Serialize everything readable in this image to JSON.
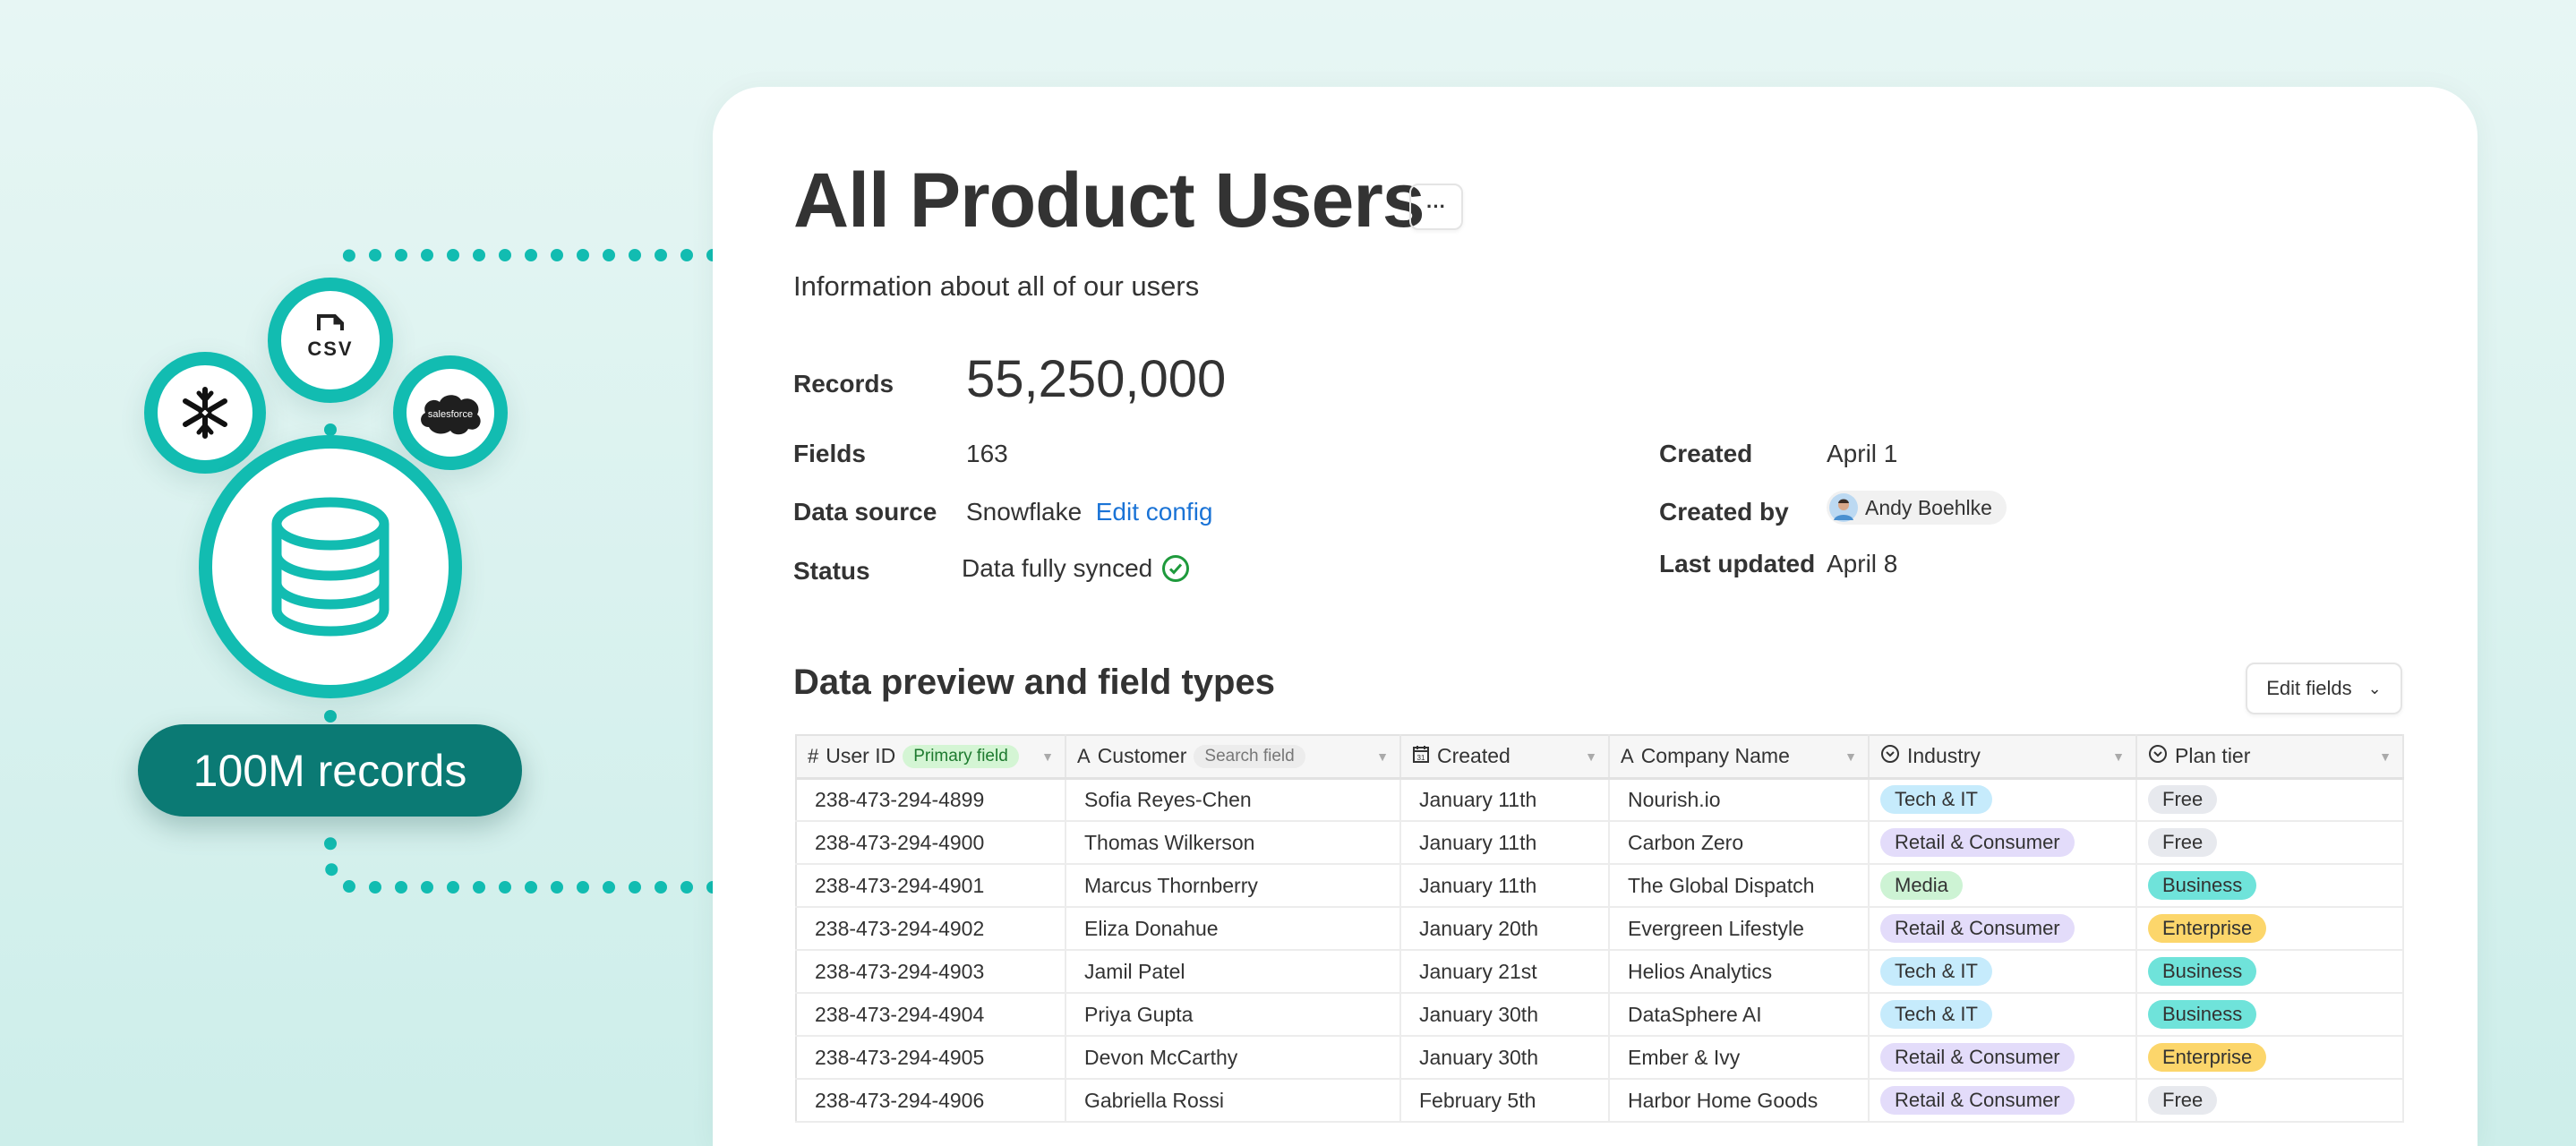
{
  "diagram": {
    "sources": [
      {
        "name": "snowflake",
        "icon": "snowflake-icon"
      },
      {
        "name": "CSV",
        "icon": "csv-file-icon"
      },
      {
        "name": "salesforce",
        "icon": "salesforce-icon"
      }
    ],
    "hub_icon": "database-icon",
    "records_pill": "100M records",
    "colors": {
      "teal": "#12bcb1",
      "pill": "#0b7a74"
    }
  },
  "header": {
    "title": "All Product Users",
    "more_label": "···",
    "subtitle": "Information about all of our users"
  },
  "details": {
    "records_label": "Records",
    "records_value": "55,250,000",
    "fields_label": "Fields",
    "fields_value": "163",
    "source_label": "Data source",
    "source_value": "Snowflake",
    "edit_config": "Edit config",
    "status_label": "Status",
    "status_value": "Data fully synced",
    "created_label": "Created",
    "created_value": "April 1",
    "created_by_label": "Created by",
    "created_by_value": "Andy Boehlke",
    "updated_label": "Last updated",
    "updated_value": "April 8"
  },
  "preview": {
    "title": "Data preview and field types",
    "edit_fields": "Edit fields"
  },
  "table": {
    "columns": [
      {
        "label": "User ID",
        "icon": "hash-icon",
        "badge": "Primary field"
      },
      {
        "label": "Customer",
        "icon": "text-icon",
        "badge": "Search field"
      },
      {
        "label": "Created",
        "icon": "calendar-icon"
      },
      {
        "label": "Company Name",
        "icon": "text-icon"
      },
      {
        "label": "Industry",
        "icon": "select-icon"
      },
      {
        "label": "Plan tier",
        "icon": "select-icon"
      }
    ],
    "rows": [
      [
        "238-473-294-4899",
        "Sofia Reyes-Chen",
        "January 11th",
        "Nourish.io",
        "Tech & IT",
        "Free"
      ],
      [
        "238-473-294-4900",
        "Thomas Wilkerson",
        "January 11th",
        "Carbon Zero",
        "Retail & Consumer",
        "Free"
      ],
      [
        "238-473-294-4901",
        "Marcus Thornberry",
        "January 11th",
        "The Global Dispatch",
        "Media",
        "Business"
      ],
      [
        "238-473-294-4902",
        "Eliza Donahue",
        "January 20th",
        "Evergreen Lifestyle",
        "Retail & Consumer",
        "Enterprise"
      ],
      [
        "238-473-294-4903",
        "Jamil Patel",
        "January 21st",
        "Helios Analytics",
        "Tech & IT",
        "Business"
      ],
      [
        "238-473-294-4904",
        "Priya Gupta",
        "January 30th",
        "DataSphere AI",
        "Tech & IT",
        "Business"
      ],
      [
        "238-473-294-4905",
        "Devon McCarthy",
        "January 30th",
        "Ember & Ivy",
        "Retail & Consumer",
        "Enterprise"
      ],
      [
        "238-473-294-4906",
        "Gabriella Rossi",
        "February 5th",
        "Harbor Home Goods",
        "Retail & Consumer",
        "Free"
      ]
    ],
    "tag_colors": {
      "Tech & IT": "#c6ebfc",
      "Retail & Consumer": "#e3dcfa",
      "Media": "#cdf3d4",
      "Free": "#e7e9ee",
      "Business": "#6fe3da",
      "Enterprise": "#fcd66b"
    }
  }
}
